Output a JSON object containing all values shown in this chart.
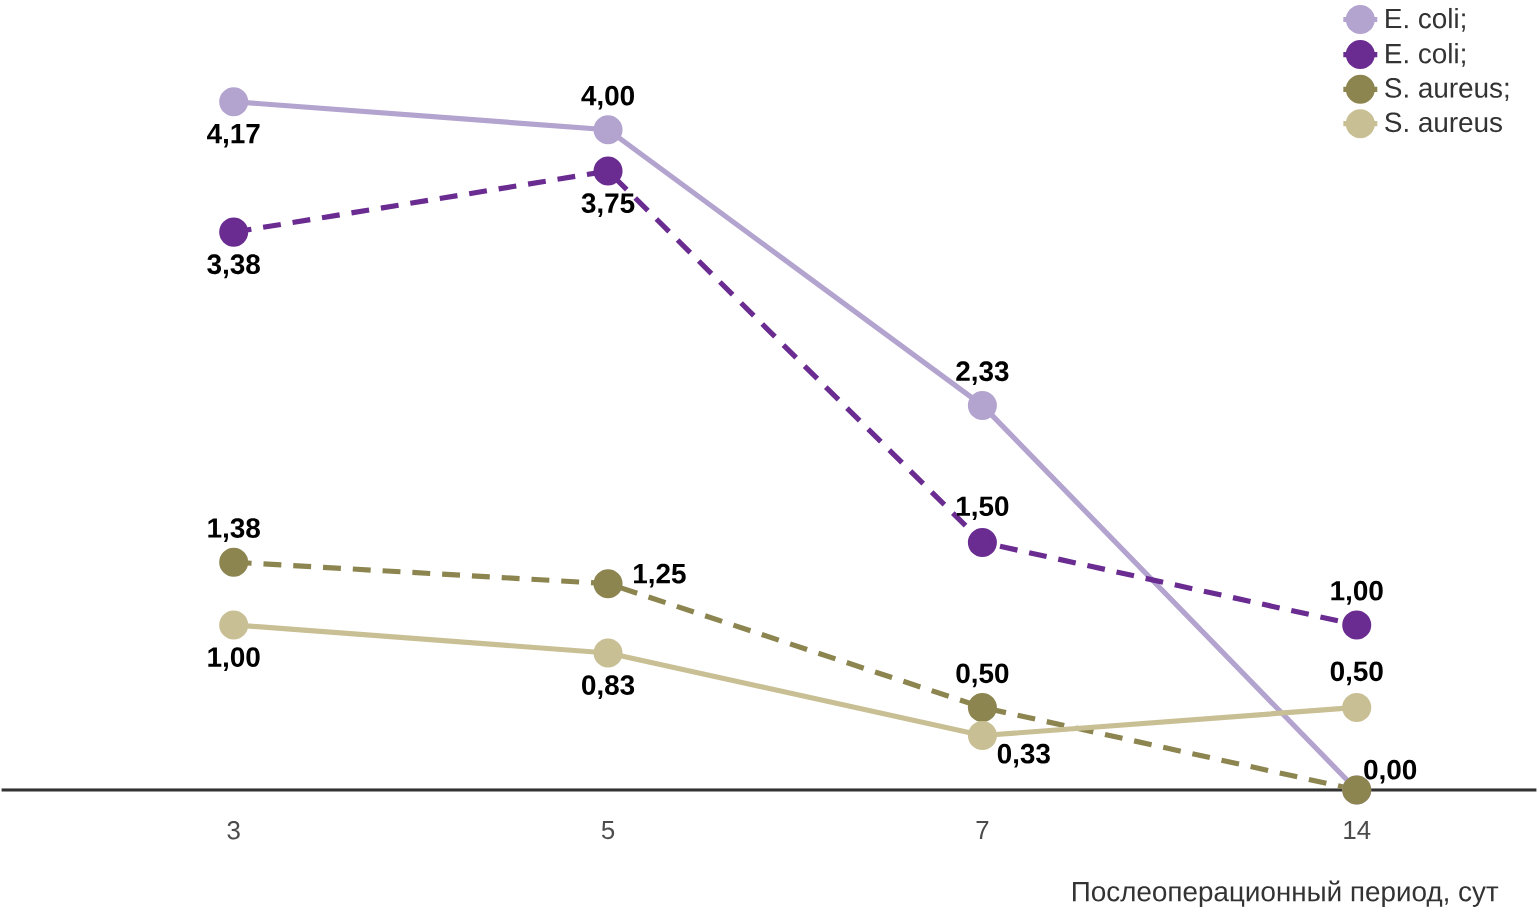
{
  "chart_data": {
    "type": "line",
    "xlabel": "Послеоперационный период, сут",
    "categories": [
      "3",
      "5",
      "7",
      "14"
    ],
    "series": [
      {
        "name": "E. coli;",
        "color": "#b3a3cf",
        "line_style": "solid",
        "values": [
          4.17,
          4.0,
          2.33,
          0.0
        ],
        "value_labels": [
          "4,17",
          "4,00",
          "2,33",
          "0,00"
        ]
      },
      {
        "name": "E. coli;",
        "color": "#6a2c91",
        "line_style": "dashed",
        "values": [
          3.38,
          3.75,
          1.5,
          1.0
        ],
        "value_labels": [
          "3,38",
          "3,75",
          "1,50",
          "1,00"
        ]
      },
      {
        "name": "S. aureus;",
        "color": "#8c8550",
        "line_style": "dashed",
        "values": [
          1.38,
          1.25,
          0.5,
          0.0
        ],
        "value_labels": [
          "1,38",
          "1,25",
          "0,50",
          null
        ]
      },
      {
        "name": "S. aureus",
        "color": "#c9bf94",
        "line_style": "solid",
        "values": [
          1.0,
          0.83,
          0.33,
          0.5
        ],
        "value_labels": [
          "1,00",
          "0,83",
          "0,33",
          "0,50"
        ]
      }
    ],
    "tick_labels": "x",
    "legend": "top right",
    "marker": "circle"
  }
}
